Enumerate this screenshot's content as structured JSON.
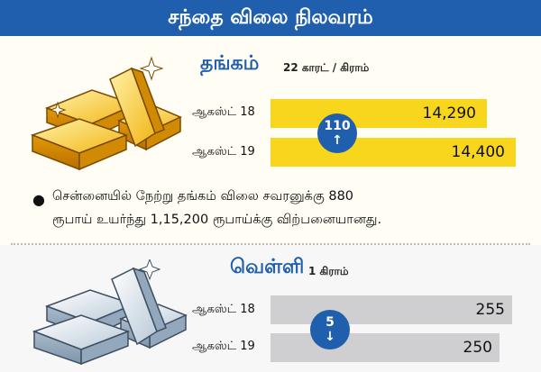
{
  "header": {
    "title": "சந்தை விலை நிலவரம்"
  },
  "gold": {
    "title": "தங்கம்",
    "unit": "22 காரட் / கிராம்",
    "rows": [
      {
        "date": "ஆகஸ்ட் 18",
        "value": "14,290"
      },
      {
        "date": "ஆகஸ்ட் 19",
        "value": "14,400"
      }
    ],
    "change": {
      "amount": "110",
      "direction": "up",
      "arrow": "↑"
    },
    "note_line1": "சென்னையில் நேற்று தங்கம் விலை சவரனுக்கு 880",
    "note_line2": "ரூபாய் உயர்ந்து 1,15,200 ரூபாய்க்கு விற்பனையானது."
  },
  "silver": {
    "title": "வெள்ளி",
    "unit": "1 கிராம்",
    "rows": [
      {
        "date": "ஆகஸ்ட் 18",
        "value": "255"
      },
      {
        "date": "ஆகஸ்ட் 19",
        "value": "250"
      }
    ],
    "change": {
      "amount": "5",
      "direction": "down",
      "arrow": "↓"
    }
  },
  "colors": {
    "header_bg": "#1f5fae",
    "gold_title": "#1f5fae",
    "silver_title": "#1f5fae",
    "gold_bar": "#f7d61d",
    "silver_bar": "#cfcfd1",
    "badge": "#1f5fae"
  },
  "icons": {
    "gold": "gold-bars-icon",
    "silver": "silver-bars-icon"
  }
}
